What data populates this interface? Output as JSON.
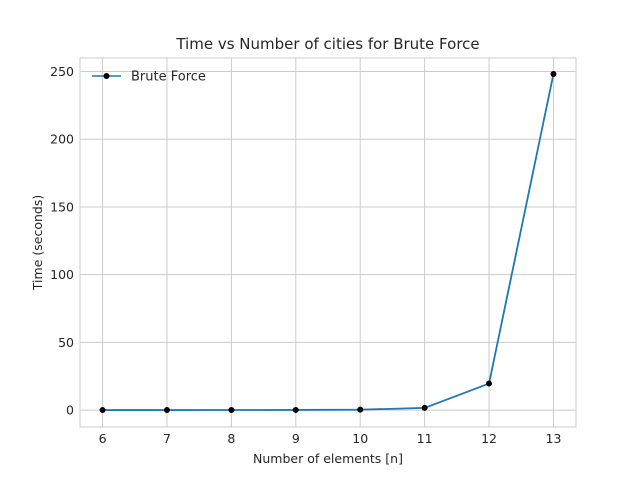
{
  "chart_data": {
    "type": "line",
    "title": "Time vs Number of cities for Brute Force",
    "xlabel": "Number of elements [n]",
    "ylabel": "Time (seconds)",
    "x": [
      6,
      7,
      8,
      9,
      10,
      11,
      12,
      13
    ],
    "xticks": [
      6,
      7,
      8,
      9,
      10,
      11,
      12,
      13
    ],
    "yticks": [
      0,
      50,
      100,
      150,
      200,
      250
    ],
    "xlim": [
      5.65,
      13.35
    ],
    "ylim": [
      -12.5,
      260
    ],
    "grid": true,
    "legend_position": "upper-left",
    "series": [
      {
        "name": "Brute Force",
        "values": [
          0.01,
          0.02,
          0.05,
          0.1,
          0.3,
          1.6,
          19.6,
          248.2
        ],
        "line_color": "#1f77b4",
        "marker_color": "#000000",
        "marker": "circle"
      }
    ]
  }
}
